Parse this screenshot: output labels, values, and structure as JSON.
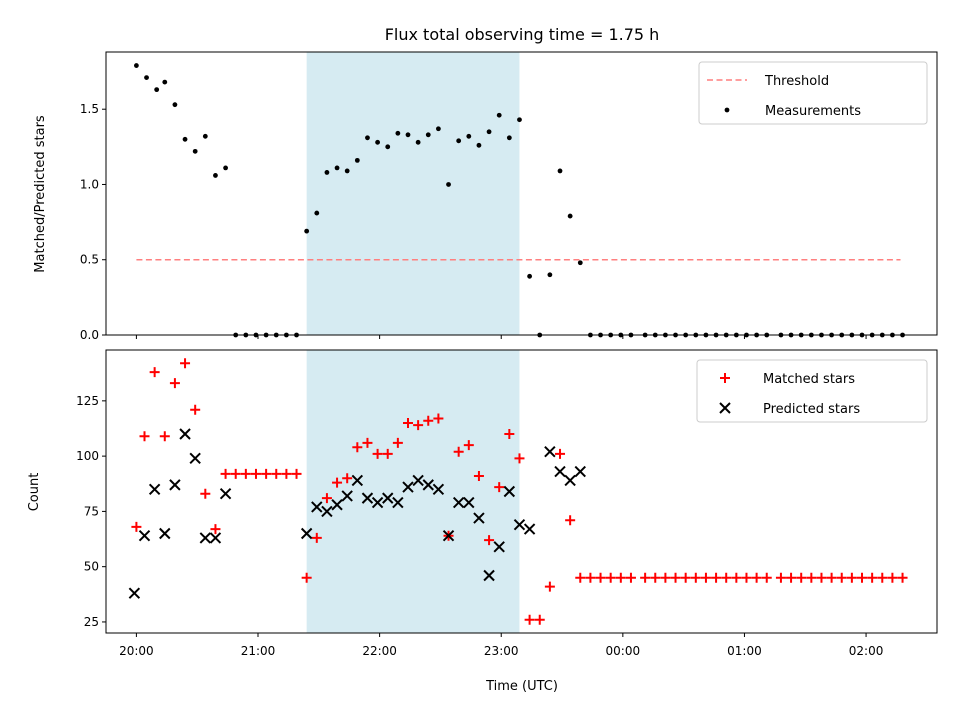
{
  "chart_data": [
    {
      "type": "scatter",
      "title": "Flux total observing time = 1.75 h",
      "xlabel": "",
      "ylabel": "Matched/Predicted stars",
      "xlim": [
        "19:45",
        "02:35"
      ],
      "ylim": [
        0,
        1.88
      ],
      "yticks": [
        0.0,
        0.5,
        1.0,
        1.5
      ],
      "ytick_labels": [
        "0.0",
        "0.5",
        "1.0",
        "1.5"
      ],
      "shaded_span": {
        "from": "21:24",
        "to": "23:09",
        "color": "#add8e6"
      },
      "threshold": {
        "name": "Threshold",
        "value": 0.5,
        "from": "20:00",
        "to": "02:17",
        "color": "#ff7f7f"
      },
      "legend": {
        "position": "upper right",
        "entries": [
          "Threshold",
          "Measurements"
        ]
      },
      "series": [
        {
          "name": "Measurements",
          "color": "#000000",
          "points": [
            [
              "20:00",
              1.79
            ],
            [
              "20:05",
              1.71
            ],
            [
              "20:10",
              1.63
            ],
            [
              "20:14",
              1.68
            ],
            [
              "20:19",
              1.53
            ],
            [
              "20:24",
              1.3
            ],
            [
              "20:29",
              1.22
            ],
            [
              "20:34",
              1.32
            ],
            [
              "20:39",
              1.06
            ],
            [
              "20:44",
              1.11
            ],
            [
              "20:49",
              0.0
            ],
            [
              "20:54",
              0.0
            ],
            [
              "20:59",
              0.0
            ],
            [
              "21:04",
              0.0
            ],
            [
              "21:09",
              0.0
            ],
            [
              "21:14",
              0.0
            ],
            [
              "21:19",
              0.0
            ],
            [
              "21:24",
              0.69
            ],
            [
              "21:29",
              0.81
            ],
            [
              "21:34",
              1.08
            ],
            [
              "21:39",
              1.11
            ],
            [
              "21:44",
              1.09
            ],
            [
              "21:49",
              1.16
            ],
            [
              "21:54",
              1.31
            ],
            [
              "21:59",
              1.28
            ],
            [
              "22:04",
              1.25
            ],
            [
              "22:09",
              1.34
            ],
            [
              "22:14",
              1.33
            ],
            [
              "22:19",
              1.28
            ],
            [
              "22:24",
              1.33
            ],
            [
              "22:29",
              1.37
            ],
            [
              "22:34",
              1.0
            ],
            [
              "22:39",
              1.29
            ],
            [
              "22:44",
              1.32
            ],
            [
              "22:49",
              1.26
            ],
            [
              "22:54",
              1.35
            ],
            [
              "22:59",
              1.46
            ],
            [
              "23:04",
              1.31
            ],
            [
              "23:09",
              1.43
            ],
            [
              "23:14",
              0.39
            ],
            [
              "23:19",
              0.0
            ],
            [
              "23:24",
              0.4
            ],
            [
              "23:29",
              1.09
            ],
            [
              "23:34",
              0.79
            ],
            [
              "23:39",
              0.48
            ],
            [
              "23:44",
              0.0
            ],
            [
              "23:49",
              0.0
            ],
            [
              "23:54",
              0.0
            ],
            [
              "23:59",
              0.0
            ],
            [
              "00:04",
              0.0
            ],
            [
              "00:11",
              0.0
            ],
            [
              "00:16",
              0.0
            ],
            [
              "00:21",
              0.0
            ],
            [
              "00:26",
              0.0
            ],
            [
              "00:31",
              0.0
            ],
            [
              "00:36",
              0.0
            ],
            [
              "00:41",
              0.0
            ],
            [
              "00:46",
              0.0
            ],
            [
              "00:51",
              0.0
            ],
            [
              "00:56",
              0.0
            ],
            [
              "01:01",
              0.0
            ],
            [
              "01:06",
              0.0
            ],
            [
              "01:11",
              0.0
            ],
            [
              "01:18",
              0.0
            ],
            [
              "01:23",
              0.0
            ],
            [
              "01:28",
              0.0
            ],
            [
              "01:33",
              0.0
            ],
            [
              "01:38",
              0.0
            ],
            [
              "01:43",
              0.0
            ],
            [
              "01:48",
              0.0
            ],
            [
              "01:53",
              0.0
            ],
            [
              "01:58",
              0.0
            ],
            [
              "02:03",
              0.0
            ],
            [
              "02:08",
              0.0
            ],
            [
              "02:13",
              0.0
            ],
            [
              "02:18",
              0.0
            ]
          ]
        }
      ]
    },
    {
      "type": "scatter",
      "title": "",
      "xlabel": "Time (UTC)",
      "ylabel": "Count",
      "xlim": [
        "19:45",
        "02:35"
      ],
      "ylim": [
        20,
        148
      ],
      "yticks": [
        25,
        50,
        75,
        100,
        125
      ],
      "ytick_labels": [
        "25",
        "50",
        "75",
        "100",
        "125"
      ],
      "xticks": [
        "20:00",
        "21:00",
        "22:00",
        "23:00",
        "00:00",
        "01:00",
        "02:00"
      ],
      "shaded_span": {
        "from": "21:24",
        "to": "23:09",
        "color": "#add8e6"
      },
      "legend": {
        "position": "upper right",
        "entries": [
          "Matched stars",
          "Predicted stars"
        ]
      },
      "series": [
        {
          "name": "Matched stars",
          "marker": "+",
          "color": "#ff0000",
          "points": [
            [
              "20:00",
              68
            ],
            [
              "20:04",
              109
            ],
            [
              "20:09",
              138
            ],
            [
              "20:14",
              109
            ],
            [
              "20:19",
              133
            ],
            [
              "20:24",
              142
            ],
            [
              "20:29",
              121
            ],
            [
              "20:34",
              83
            ],
            [
              "20:39",
              67
            ],
            [
              "20:44",
              92
            ],
            [
              "20:49",
              92
            ],
            [
              "20:54",
              92
            ],
            [
              "20:59",
              92
            ],
            [
              "21:04",
              92
            ],
            [
              "21:09",
              92
            ],
            [
              "21:14",
              92
            ],
            [
              "21:19",
              92
            ],
            [
              "21:24",
              45
            ],
            [
              "21:29",
              63
            ],
            [
              "21:34",
              81
            ],
            [
              "21:39",
              88
            ],
            [
              "21:44",
              90
            ],
            [
              "21:49",
              104
            ],
            [
              "21:54",
              106
            ],
            [
              "21:59",
              101
            ],
            [
              "22:04",
              101
            ],
            [
              "22:09",
              106
            ],
            [
              "22:14",
              115
            ],
            [
              "22:19",
              114
            ],
            [
              "22:24",
              116
            ],
            [
              "22:29",
              117
            ],
            [
              "22:34",
              64
            ],
            [
              "22:39",
              102
            ],
            [
              "22:44",
              105
            ],
            [
              "22:49",
              91
            ],
            [
              "22:54",
              62
            ],
            [
              "22:59",
              86
            ],
            [
              "23:04",
              110
            ],
            [
              "23:09",
              99
            ],
            [
              "23:14",
              26
            ],
            [
              "23:19",
              26
            ],
            [
              "23:24",
              41
            ],
            [
              "23:29",
              101
            ],
            [
              "23:34",
              71
            ],
            [
              "23:39",
              45
            ],
            [
              "23:44",
              45
            ],
            [
              "23:49",
              45
            ],
            [
              "23:54",
              45
            ],
            [
              "23:59",
              45
            ],
            [
              "00:04",
              45
            ],
            [
              "00:11",
              45
            ],
            [
              "00:16",
              45
            ],
            [
              "00:21",
              45
            ],
            [
              "00:26",
              45
            ],
            [
              "00:31",
              45
            ],
            [
              "00:36",
              45
            ],
            [
              "00:41",
              45
            ],
            [
              "00:46",
              45
            ],
            [
              "00:51",
              45
            ],
            [
              "00:56",
              45
            ],
            [
              "01:01",
              45
            ],
            [
              "01:06",
              45
            ],
            [
              "01:11",
              45
            ],
            [
              "01:18",
              45
            ],
            [
              "01:23",
              45
            ],
            [
              "01:28",
              45
            ],
            [
              "01:33",
              45
            ],
            [
              "01:38",
              45
            ],
            [
              "01:43",
              45
            ],
            [
              "01:48",
              45
            ],
            [
              "01:53",
              45
            ],
            [
              "01:58",
              45
            ],
            [
              "02:03",
              45
            ],
            [
              "02:08",
              45
            ],
            [
              "02:13",
              45
            ],
            [
              "02:18",
              45
            ]
          ]
        },
        {
          "name": "Predicted stars",
          "marker": "x",
          "color": "#000000",
          "points": [
            [
              "19:59",
              38
            ],
            [
              "20:04",
              64
            ],
            [
              "20:09",
              85
            ],
            [
              "20:14",
              65
            ],
            [
              "20:19",
              87
            ],
            [
              "20:24",
              110
            ],
            [
              "20:29",
              99
            ],
            [
              "20:34",
              63
            ],
            [
              "20:39",
              63
            ],
            [
              "20:44",
              83
            ],
            [
              "21:24",
              65
            ],
            [
              "21:29",
              77
            ],
            [
              "21:34",
              75
            ],
            [
              "21:39",
              78
            ],
            [
              "21:44",
              82
            ],
            [
              "21:49",
              89
            ],
            [
              "21:54",
              81
            ],
            [
              "21:59",
              79
            ],
            [
              "22:04",
              81
            ],
            [
              "22:09",
              79
            ],
            [
              "22:14",
              86
            ],
            [
              "22:19",
              89
            ],
            [
              "22:24",
              87
            ],
            [
              "22:29",
              85
            ],
            [
              "22:34",
              64
            ],
            [
              "22:39",
              79
            ],
            [
              "22:44",
              79
            ],
            [
              "22:49",
              72
            ],
            [
              "22:54",
              46
            ],
            [
              "22:59",
              59
            ],
            [
              "23:04",
              84
            ],
            [
              "23:09",
              69
            ],
            [
              "23:14",
              67
            ],
            [
              "23:24",
              102
            ],
            [
              "23:29",
              93
            ],
            [
              "23:34",
              89
            ],
            [
              "23:39",
              93
            ]
          ]
        }
      ]
    }
  ]
}
